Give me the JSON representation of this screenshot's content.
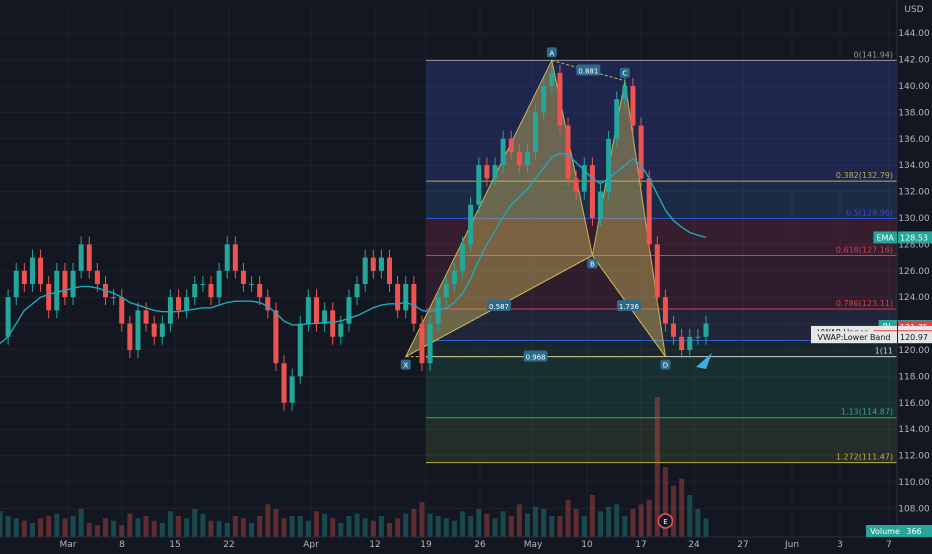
{
  "chart_data": {
    "type": "candlestick",
    "currency": "USD",
    "ylim": [
      106,
      146
    ],
    "y_ticks": [
      108,
      110,
      112,
      114,
      116,
      118,
      120,
      122,
      124,
      126,
      128,
      130,
      132,
      134,
      136,
      138,
      140,
      142,
      144
    ],
    "x_ticks": [
      "Mar",
      "8",
      "15",
      "22",
      "Apr",
      "12",
      "19",
      "26",
      "May",
      "10",
      "17",
      "24",
      "27",
      "Jun",
      "3",
      "7"
    ],
    "close_series": [
      121,
      124,
      126,
      125,
      127,
      125,
      123,
      126,
      124,
      126,
      128,
      126,
      125,
      124,
      124,
      122,
      120,
      123,
      122,
      121,
      122,
      124,
      123,
      124,
      125,
      125,
      124,
      126,
      128,
      126,
      125,
      125,
      124,
      123,
      119,
      116,
      118,
      122,
      124,
      122,
      123,
      121,
      122,
      124,
      125,
      127,
      126,
      127,
      125,
      123,
      125,
      122,
      119,
      122,
      124,
      125,
      126,
      128,
      131,
      134,
      133,
      134,
      136,
      135,
      134,
      135,
      138,
      140,
      141,
      137,
      133,
      132,
      134,
      130,
      132,
      136,
      139,
      140,
      137,
      133,
      128,
      124,
      122,
      121,
      120,
      121,
      121,
      122
    ],
    "ema_series": [
      120.5,
      121,
      122,
      123,
      123.5,
      124,
      124.2,
      124.4,
      124.5,
      124.7,
      124.8,
      124.8,
      124.7,
      124.5,
      124.3,
      124,
      123.6,
      123.4,
      123.2,
      123,
      122.9,
      122.9,
      122.9,
      123,
      123.1,
      123.2,
      123.2,
      123.4,
      123.6,
      123.7,
      123.7,
      123.7,
      123.6,
      123.3,
      122.8,
      122.2,
      121.9,
      121.9,
      122,
      122,
      122.1,
      122.1,
      122.2,
      122.4,
      122.6,
      122.9,
      123.2,
      123.4,
      123.5,
      123.5,
      123.6,
      123.4,
      123,
      122.9,
      123,
      123.2,
      123.6,
      124.3,
      125.4,
      126.8,
      128,
      129,
      130.1,
      131,
      131.6,
      132.2,
      133,
      133.8,
      134.6,
      134.9,
      134.8,
      134.2,
      133.6,
      133,
      132.6,
      133,
      133.5,
      134,
      134.5,
      134,
      133,
      131.8,
      130.6,
      129.8,
      129.3,
      128.9,
      128.7,
      128.53
    ],
    "volume": [
      11,
      9,
      8,
      7,
      6,
      8,
      9,
      10,
      8,
      9,
      12,
      6,
      5,
      8,
      7,
      5,
      10,
      8,
      9,
      7,
      6,
      11,
      9,
      8,
      12,
      10,
      7,
      7,
      6,
      9,
      8,
      6,
      9,
      14,
      12,
      8,
      9,
      9,
      7,
      11,
      10,
      8,
      6,
      9,
      10,
      8,
      7,
      9,
      6,
      8,
      10,
      12,
      15,
      10,
      9,
      8,
      7,
      11,
      9,
      12,
      10,
      8,
      11,
      9,
      14,
      10,
      13,
      12,
      9,
      9,
      16,
      12,
      9,
      18,
      11,
      13,
      14,
      9,
      12,
      14,
      16,
      60,
      30,
      22,
      25,
      18,
      12,
      8
    ],
    "harmonic_points": [
      {
        "label": "X",
        "value": 119.5
      },
      {
        "label": "A",
        "value": 141.94
      },
      {
        "label": "B",
        "value": 127.16
      },
      {
        "label": "C",
        "value": 140.4
      },
      {
        "label": "D",
        "value": 119.5
      }
    ],
    "harmonic_ratios": [
      "0.587",
      "0.881",
      "1.736",
      "0.968"
    ],
    "fib_levels": [
      {
        "label": "0(141.94)",
        "value": 141.94
      },
      {
        "label": "0.382(132.79)",
        "value": 132.79
      },
      {
        "label": "0.5(129.96)",
        "value": 129.96
      },
      {
        "label": "0.618(127.16)",
        "value": 127.16
      },
      {
        "label": "0.786(123.11)",
        "value": 123.11
      },
      {
        "label": "0.886(120.72)",
        "value": 120.72
      },
      {
        "label": "1(11",
        "value": 119.5
      },
      {
        "label": "1.13(114.87)",
        "value": 114.87
      },
      {
        "label": "1.272(111.47)",
        "value": 111.47
      }
    ],
    "price_tags": [
      {
        "label": "EMA",
        "value": "128.53",
        "color": "#26a69a"
      },
      {
        "label": "RL",
        "value": "121.82",
        "color": "#26a69a"
      },
      {
        "label": "",
        "value": "121.75",
        "color": "#f23645"
      },
      {
        "label": "VWAP:Upper Band",
        "value": "121.37",
        "color": "#e6e6e6"
      },
      {
        "label": "VWAP",
        "value": "121.17",
        "color": "#e6e6e6"
      },
      {
        "label": "EMA",
        "value": "121.04",
        "color": "#f23645"
      },
      {
        "label": "VWAP:Lower Band",
        "value": "120.97",
        "color": "#e6e6e6"
      }
    ],
    "colors": {
      "up": "#26a69a",
      "down": "#ef5350",
      "ema": "#1fa8b8",
      "pattern": "#c9b458",
      "background": "#131722",
      "grid": "#1e222d"
    },
    "volume_label": "Volume",
    "volume_value": "366",
    "event_marker": "E"
  }
}
